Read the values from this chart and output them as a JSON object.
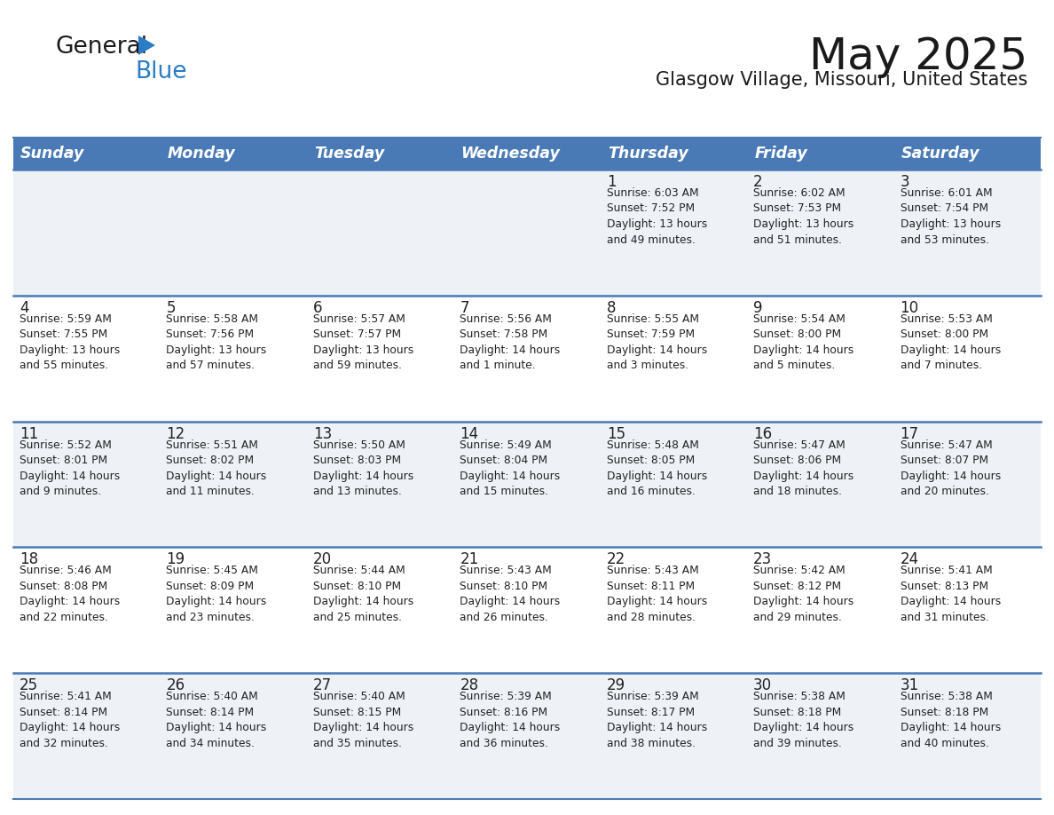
{
  "title": "May 2025",
  "subtitle": "Glasgow Village, Missouri, United States",
  "header_bg": "#4a7ab5",
  "header_text_color": "#ffffff",
  "days_of_week": [
    "Sunday",
    "Monday",
    "Tuesday",
    "Wednesday",
    "Thursday",
    "Friday",
    "Saturday"
  ],
  "row_bg_odd": "#eef2f7",
  "row_bg_even": "#ffffff",
  "cell_border_color": "#4a7ab5",
  "logo_general_color": "#1a1a1a",
  "logo_blue_color": "#2a7cc7",
  "logo_triangle_color": "#2a7cc7",
  "title_color": "#1a1a1a",
  "subtitle_color": "#1a1a1a",
  "day_number_color": "#222222",
  "info_text_color": "#222222",
  "calendar_data": [
    [
      {
        "day": "",
        "info": ""
      },
      {
        "day": "",
        "info": ""
      },
      {
        "day": "",
        "info": ""
      },
      {
        "day": "",
        "info": ""
      },
      {
        "day": "1",
        "info": "Sunrise: 6:03 AM\nSunset: 7:52 PM\nDaylight: 13 hours\nand 49 minutes."
      },
      {
        "day": "2",
        "info": "Sunrise: 6:02 AM\nSunset: 7:53 PM\nDaylight: 13 hours\nand 51 minutes."
      },
      {
        "day": "3",
        "info": "Sunrise: 6:01 AM\nSunset: 7:54 PM\nDaylight: 13 hours\nand 53 minutes."
      }
    ],
    [
      {
        "day": "4",
        "info": "Sunrise: 5:59 AM\nSunset: 7:55 PM\nDaylight: 13 hours\nand 55 minutes."
      },
      {
        "day": "5",
        "info": "Sunrise: 5:58 AM\nSunset: 7:56 PM\nDaylight: 13 hours\nand 57 minutes."
      },
      {
        "day": "6",
        "info": "Sunrise: 5:57 AM\nSunset: 7:57 PM\nDaylight: 13 hours\nand 59 minutes."
      },
      {
        "day": "7",
        "info": "Sunrise: 5:56 AM\nSunset: 7:58 PM\nDaylight: 14 hours\nand 1 minute."
      },
      {
        "day": "8",
        "info": "Sunrise: 5:55 AM\nSunset: 7:59 PM\nDaylight: 14 hours\nand 3 minutes."
      },
      {
        "day": "9",
        "info": "Sunrise: 5:54 AM\nSunset: 8:00 PM\nDaylight: 14 hours\nand 5 minutes."
      },
      {
        "day": "10",
        "info": "Sunrise: 5:53 AM\nSunset: 8:00 PM\nDaylight: 14 hours\nand 7 minutes."
      }
    ],
    [
      {
        "day": "11",
        "info": "Sunrise: 5:52 AM\nSunset: 8:01 PM\nDaylight: 14 hours\nand 9 minutes."
      },
      {
        "day": "12",
        "info": "Sunrise: 5:51 AM\nSunset: 8:02 PM\nDaylight: 14 hours\nand 11 minutes."
      },
      {
        "day": "13",
        "info": "Sunrise: 5:50 AM\nSunset: 8:03 PM\nDaylight: 14 hours\nand 13 minutes."
      },
      {
        "day": "14",
        "info": "Sunrise: 5:49 AM\nSunset: 8:04 PM\nDaylight: 14 hours\nand 15 minutes."
      },
      {
        "day": "15",
        "info": "Sunrise: 5:48 AM\nSunset: 8:05 PM\nDaylight: 14 hours\nand 16 minutes."
      },
      {
        "day": "16",
        "info": "Sunrise: 5:47 AM\nSunset: 8:06 PM\nDaylight: 14 hours\nand 18 minutes."
      },
      {
        "day": "17",
        "info": "Sunrise: 5:47 AM\nSunset: 8:07 PM\nDaylight: 14 hours\nand 20 minutes."
      }
    ],
    [
      {
        "day": "18",
        "info": "Sunrise: 5:46 AM\nSunset: 8:08 PM\nDaylight: 14 hours\nand 22 minutes."
      },
      {
        "day": "19",
        "info": "Sunrise: 5:45 AM\nSunset: 8:09 PM\nDaylight: 14 hours\nand 23 minutes."
      },
      {
        "day": "20",
        "info": "Sunrise: 5:44 AM\nSunset: 8:10 PM\nDaylight: 14 hours\nand 25 minutes."
      },
      {
        "day": "21",
        "info": "Sunrise: 5:43 AM\nSunset: 8:10 PM\nDaylight: 14 hours\nand 26 minutes."
      },
      {
        "day": "22",
        "info": "Sunrise: 5:43 AM\nSunset: 8:11 PM\nDaylight: 14 hours\nand 28 minutes."
      },
      {
        "day": "23",
        "info": "Sunrise: 5:42 AM\nSunset: 8:12 PM\nDaylight: 14 hours\nand 29 minutes."
      },
      {
        "day": "24",
        "info": "Sunrise: 5:41 AM\nSunset: 8:13 PM\nDaylight: 14 hours\nand 31 minutes."
      }
    ],
    [
      {
        "day": "25",
        "info": "Sunrise: 5:41 AM\nSunset: 8:14 PM\nDaylight: 14 hours\nand 32 minutes."
      },
      {
        "day": "26",
        "info": "Sunrise: 5:40 AM\nSunset: 8:14 PM\nDaylight: 14 hours\nand 34 minutes."
      },
      {
        "day": "27",
        "info": "Sunrise: 5:40 AM\nSunset: 8:15 PM\nDaylight: 14 hours\nand 35 minutes."
      },
      {
        "day": "28",
        "info": "Sunrise: 5:39 AM\nSunset: 8:16 PM\nDaylight: 14 hours\nand 36 minutes."
      },
      {
        "day": "29",
        "info": "Sunrise: 5:39 AM\nSunset: 8:17 PM\nDaylight: 14 hours\nand 38 minutes."
      },
      {
        "day": "30",
        "info": "Sunrise: 5:38 AM\nSunset: 8:18 PM\nDaylight: 14 hours\nand 39 minutes."
      },
      {
        "day": "31",
        "info": "Sunrise: 5:38 AM\nSunset: 8:18 PM\nDaylight: 14 hours\nand 40 minutes."
      }
    ]
  ]
}
